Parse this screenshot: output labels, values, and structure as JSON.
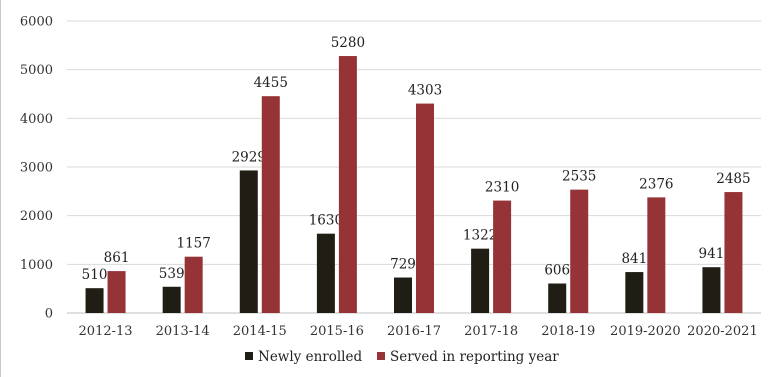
{
  "chart_data": {
    "type": "bar",
    "title": "",
    "xlabel": "",
    "ylabel": "",
    "ylim": [
      0,
      6000
    ],
    "yticks": [
      0,
      1000,
      2000,
      3000,
      4000,
      5000,
      6000
    ],
    "grid": true,
    "legend_position": "bottom",
    "categories": [
      "2012-13",
      "2013-14",
      "2014-15",
      "2015-16",
      "2016-17",
      "2017-18",
      "2018-19",
      "2019-2020",
      "2020-2021"
    ],
    "series": [
      {
        "name": "Newly enrolled",
        "color": "#1f1d14",
        "values": [
          510,
          539,
          2929,
          1630,
          729,
          1322,
          606,
          841,
          941
        ]
      },
      {
        "name": "Served in reporting year",
        "color": "#953337",
        "values": [
          861,
          1157,
          4455,
          5280,
          4303,
          2310,
          2535,
          2376,
          2485
        ]
      }
    ]
  }
}
